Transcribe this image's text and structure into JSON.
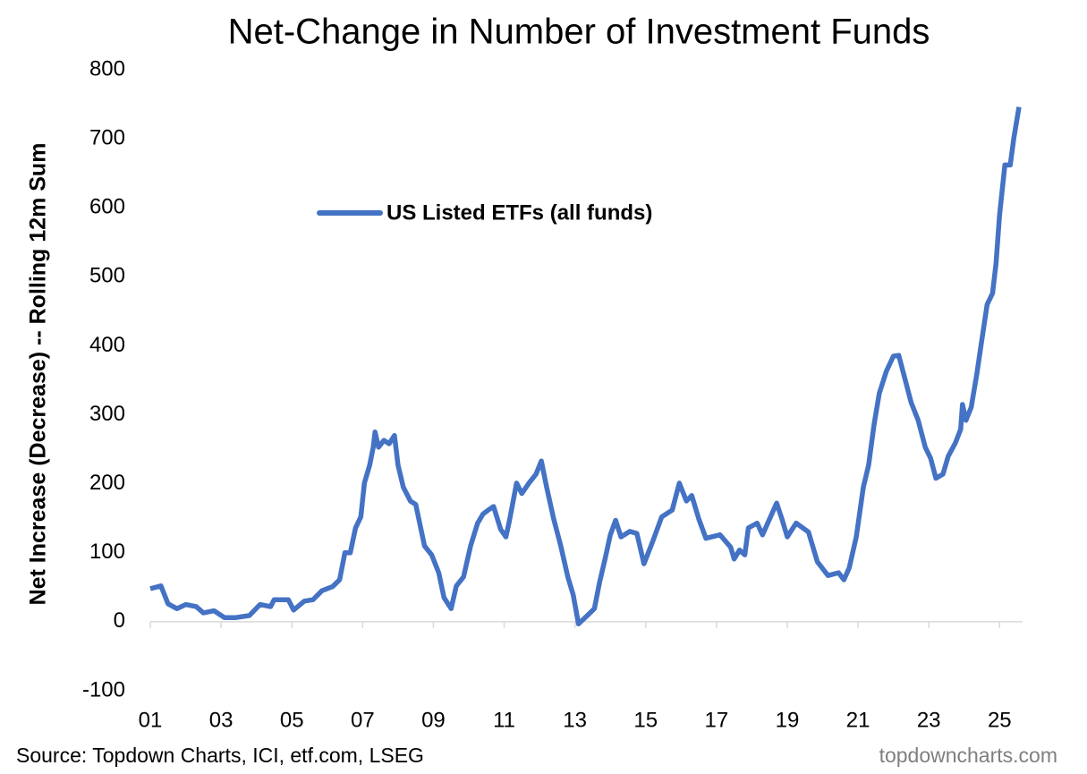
{
  "chart_data": {
    "type": "line",
    "title": "Net-Change in Number of Investment Funds",
    "y_label": "Net Increase (Decrease) -- Rolling 12m Sum",
    "source": "Source: Topdown Charts, ICI, etf.com, LSEG",
    "watermark": "topdowncharts.com",
    "legend": "top-center",
    "grid": false,
    "xlim": [
      2001,
      2025.65
    ],
    "ylim": [
      -100,
      800
    ],
    "yticks": [
      -100,
      0,
      100,
      200,
      300,
      400,
      500,
      600,
      700,
      800
    ],
    "xticks": [
      {
        "value": 2001,
        "label": "01"
      },
      {
        "value": 2003,
        "label": "03"
      },
      {
        "value": 2005,
        "label": "05"
      },
      {
        "value": 2007,
        "label": "07"
      },
      {
        "value": 2009,
        "label": "09"
      },
      {
        "value": 2011,
        "label": "11"
      },
      {
        "value": 2013,
        "label": "13"
      },
      {
        "value": 2015,
        "label": "15"
      },
      {
        "value": 2017,
        "label": "17"
      },
      {
        "value": 2019,
        "label": "19"
      },
      {
        "value": 2021,
        "label": "21"
      },
      {
        "value": 2023,
        "label": "23"
      },
      {
        "value": 2025,
        "label": "25"
      }
    ],
    "x": [
      2001.0,
      2001.3,
      2001.5,
      2001.75,
      2002.0,
      2002.3,
      2002.5,
      2002.8,
      2003.1,
      2003.4,
      2003.8,
      2004.1,
      2004.4,
      2004.5,
      2004.9,
      2005.05,
      2005.35,
      2005.6,
      2005.85,
      2006.15,
      2006.35,
      2006.5,
      2006.65,
      2006.8,
      2006.95,
      2007.05,
      2007.2,
      2007.3,
      2007.35,
      2007.45,
      2007.6,
      2007.75,
      2007.9,
      2008.0,
      2008.15,
      2008.35,
      2008.5,
      2008.75,
      2008.95,
      2009.15,
      2009.3,
      2009.5,
      2009.65,
      2009.85,
      2010.05,
      2010.25,
      2010.4,
      2010.55,
      2010.7,
      2010.9,
      2011.05,
      2011.15,
      2011.35,
      2011.5,
      2011.7,
      2011.9,
      2012.05,
      2012.2,
      2012.4,
      2012.6,
      2012.8,
      2012.95,
      2013.1,
      2013.35,
      2013.55,
      2013.7,
      2013.85,
      2014.0,
      2014.15,
      2014.3,
      2014.55,
      2014.75,
      2014.95,
      2015.2,
      2015.45,
      2015.75,
      2015.95,
      2016.15,
      2016.3,
      2016.5,
      2016.7,
      2017.1,
      2017.4,
      2017.5,
      2017.65,
      2017.8,
      2017.9,
      2018.15,
      2018.3,
      2018.5,
      2018.7,
      2018.85,
      2019.0,
      2019.25,
      2019.6,
      2019.85,
      2020.15,
      2020.45,
      2020.6,
      2020.75,
      2020.95,
      2021.15,
      2021.3,
      2021.45,
      2021.6,
      2021.8,
      2022.0,
      2022.15,
      2022.3,
      2022.5,
      2022.7,
      2022.9,
      2023.05,
      2023.2,
      2023.4,
      2023.55,
      2023.75,
      2023.9,
      2023.95,
      2024.05,
      2024.2,
      2024.35,
      2024.5,
      2024.65,
      2024.8,
      2024.9,
      2025.0,
      2025.15,
      2025.3,
      2025.4,
      2025.55
    ],
    "series": [
      {
        "name": "US Listed ETFs (all funds)",
        "color": "#4472c4",
        "values": [
          48,
          52,
          26,
          19,
          25,
          22,
          13,
          16,
          6,
          6,
          9,
          25,
          22,
          32,
          32,
          17,
          30,
          32,
          45,
          51,
          61,
          100,
          100,
          136,
          152,
          201,
          227,
          253,
          275,
          253,
          263,
          258,
          270,
          227,
          195,
          175,
          170,
          110,
          97,
          71,
          35,
          19,
          52,
          65,
          110,
          143,
          156,
          162,
          167,
          134,
          123,
          147,
          201,
          186,
          201,
          214,
          233,
          195,
          149,
          110,
          65,
          39,
          -3,
          9,
          19,
          58,
          91,
          126,
          147,
          123,
          131,
          128,
          84,
          117,
          152,
          162,
          201,
          175,
          183,
          149,
          121,
          126,
          108,
          91,
          104,
          97,
          136,
          143,
          126,
          149,
          172,
          149,
          123,
          143,
          130,
          87,
          67,
          71,
          61,
          78,
          123,
          195,
          227,
          285,
          331,
          363,
          385,
          386,
          357,
          318,
          292,
          253,
          237,
          208,
          214,
          240,
          259,
          279,
          315,
          292,
          311,
          357,
          409,
          460,
          476,
          519,
          590,
          662,
          662,
          700,
          746
        ]
      }
    ]
  }
}
